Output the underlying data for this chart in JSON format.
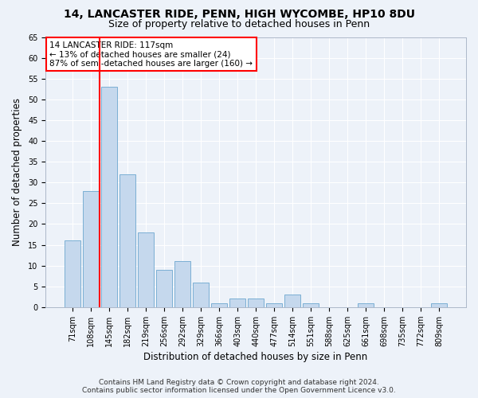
{
  "title": "14, LANCASTER RIDE, PENN, HIGH WYCOMBE, HP10 8DU",
  "subtitle": "Size of property relative to detached houses in Penn",
  "xlabel": "Distribution of detached houses by size in Penn",
  "ylabel": "Number of detached properties",
  "bar_color": "#c5d8ed",
  "bar_edge_color": "#7bafd4",
  "categories": [
    "71sqm",
    "108sqm",
    "145sqm",
    "182sqm",
    "219sqm",
    "256sqm",
    "292sqm",
    "329sqm",
    "366sqm",
    "403sqm",
    "440sqm",
    "477sqm",
    "514sqm",
    "551sqm",
    "588sqm",
    "625sqm",
    "661sqm",
    "698sqm",
    "735sqm",
    "772sqm",
    "809sqm"
  ],
  "values": [
    16,
    28,
    53,
    32,
    18,
    9,
    11,
    6,
    1,
    2,
    2,
    1,
    3,
    1,
    0,
    0,
    1,
    0,
    0,
    0,
    1
  ],
  "ylim": [
    0,
    65
  ],
  "yticks": [
    0,
    5,
    10,
    15,
    20,
    25,
    30,
    35,
    40,
    45,
    50,
    55,
    60,
    65
  ],
  "red_line_x": 1.5,
  "annotation_text": "14 LANCASTER RIDE: 117sqm\n← 13% of detached houses are smaller (24)\n87% of semi-detached houses are larger (160) →",
  "footer_line1": "Contains HM Land Registry data © Crown copyright and database right 2024.",
  "footer_line2": "Contains public sector information licensed under the Open Government Licence v3.0.",
  "background_color": "#edf2f9",
  "plot_bg_color": "#edf2f9",
  "grid_color": "#ffffff",
  "title_fontsize": 10,
  "subtitle_fontsize": 9,
  "axis_label_fontsize": 8.5,
  "tick_fontsize": 7,
  "annotation_fontsize": 7.5,
  "footer_fontsize": 6.5
}
